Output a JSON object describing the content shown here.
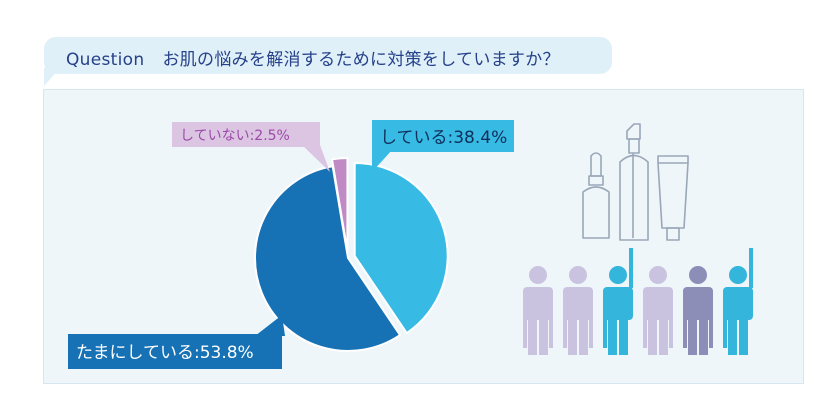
{
  "question": {
    "label": "Question",
    "text": "お肌の悩みを解消するために対策をしていますか？"
  },
  "colors": {
    "bubble": "#dff0f8",
    "panel": "#eef6fa",
    "question_text": "#26408a",
    "cyan": "#37bbe4",
    "blue": "#1671b5",
    "purple": "#c08bc5",
    "label_purple_bg": "#dcc5e3",
    "label_purple_text": "#9b4aa7",
    "icon_line": "#9aa7b8",
    "person_lavender": "#c9c3e0",
    "person_cyan": "#33b5dc",
    "person_slate": "#8c8eb8"
  },
  "icons": [
    "dropper-bottle-icon",
    "spray-bottle-icon",
    "tube-icon",
    "people-icon"
  ],
  "chart_data": {
    "type": "pie",
    "title": "",
    "slices": [
      {
        "label": "している",
        "value": 38.4,
        "display": "している:38.4%",
        "color": "#37bbe4"
      },
      {
        "label": "たまにしている",
        "value": 53.8,
        "display": "たまにしている:53.8%",
        "color": "#1671b5"
      },
      {
        "label": "していない",
        "value": 2.5,
        "display": "していない:2.5%",
        "color": "#c08bc5"
      }
    ]
  }
}
